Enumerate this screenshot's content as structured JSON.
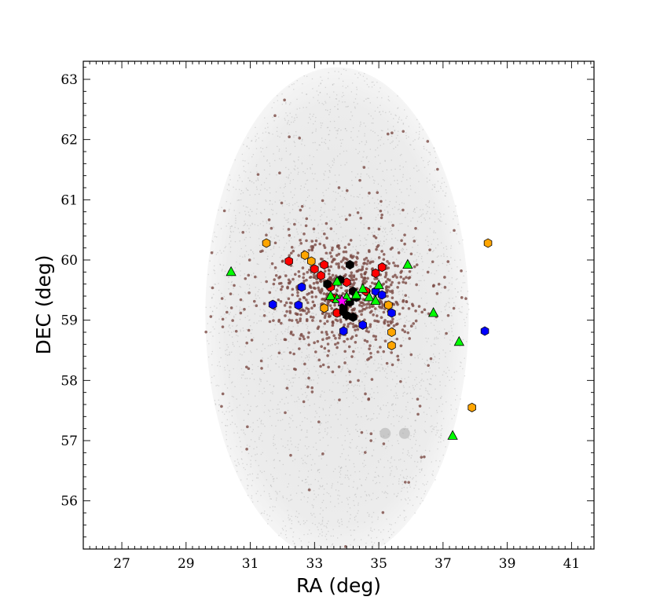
{
  "chart_data": {
    "type": "scatter",
    "title": "",
    "xlabel": "RA (deg)",
    "ylabel": "DEC (deg)",
    "xlim": [
      25.8,
      41.7
    ],
    "ylim": [
      55.2,
      63.3
    ],
    "x_ticks": [
      27,
      29,
      31,
      33,
      35,
      37,
      39,
      41
    ],
    "y_ticks": [
      56,
      57,
      58,
      59,
      60,
      61,
      62,
      63
    ],
    "grid": false,
    "legend": "none",
    "field": {
      "center": [
        33.7,
        59.1
      ],
      "radius_deg": 4.1,
      "color": "#c8c8c8"
    },
    "colors": {
      "background_stars": "#7a4a44",
      "red": "#ff0000",
      "black": "#000000",
      "blue": "#0000ff",
      "orange": "#ffa500",
      "green": "#00ff00",
      "magenta": "#ff00ff"
    },
    "series": [
      {
        "color": "#ff0000",
        "marker": "hexagon",
        "points": [
          [
            32.2,
            59.98
          ],
          [
            33.0,
            59.85
          ],
          [
            33.2,
            59.74
          ],
          [
            33.3,
            59.92
          ],
          [
            33.5,
            59.55
          ],
          [
            34.0,
            59.63
          ],
          [
            33.9,
            59.17
          ],
          [
            33.7,
            59.12
          ],
          [
            34.9,
            59.78
          ],
          [
            35.1,
            59.88
          ],
          [
            34.6,
            59.48
          ],
          [
            33.6,
            59.36
          ]
        ]
      },
      {
        "color": "#000000",
        "marker": "hexagon",
        "points": [
          [
            34.1,
            59.92
          ],
          [
            33.4,
            59.6
          ],
          [
            33.8,
            59.67
          ],
          [
            34.2,
            59.48
          ],
          [
            34.3,
            59.38
          ],
          [
            34.1,
            59.3
          ],
          [
            33.9,
            59.22
          ],
          [
            34.0,
            59.08
          ],
          [
            34.2,
            59.05
          ],
          [
            33.9,
            59.14
          ]
        ]
      },
      {
        "color": "#0000ff",
        "marker": "hexagon",
        "points": [
          [
            31.7,
            59.26
          ],
          [
            32.5,
            59.25
          ],
          [
            32.6,
            59.55
          ],
          [
            34.9,
            59.48
          ],
          [
            35.1,
            59.42
          ],
          [
            35.4,
            59.12
          ],
          [
            34.5,
            58.92
          ],
          [
            33.9,
            58.82
          ],
          [
            38.3,
            58.82
          ]
        ]
      },
      {
        "color": "#ffa500",
        "marker": "hexagon",
        "points": [
          [
            31.5,
            60.28
          ],
          [
            32.7,
            60.08
          ],
          [
            32.9,
            59.98
          ],
          [
            33.3,
            59.2
          ],
          [
            35.3,
            59.25
          ],
          [
            35.4,
            58.8
          ],
          [
            35.4,
            58.58
          ],
          [
            38.4,
            60.28
          ],
          [
            37.9,
            57.55
          ]
        ]
      },
      {
        "color": "#00ff00",
        "marker": "triangle",
        "points": [
          [
            30.4,
            59.8
          ],
          [
            35.9,
            59.92
          ],
          [
            33.7,
            59.64
          ],
          [
            34.5,
            59.52
          ],
          [
            34.3,
            59.42
          ],
          [
            34.7,
            59.38
          ],
          [
            34.9,
            59.32
          ],
          [
            33.5,
            59.4
          ],
          [
            33.7,
            59.35
          ],
          [
            34.0,
            59.38
          ],
          [
            36.7,
            59.12
          ],
          [
            37.5,
            58.64
          ],
          [
            37.3,
            57.08
          ],
          [
            35.0,
            59.58
          ]
        ]
      },
      {
        "color": "#ff00ff",
        "marker": "star",
        "points": [
          [
            33.85,
            59.32
          ]
        ]
      }
    ]
  },
  "axes": {
    "xlabel": "RA (deg)",
    "ylabel": "DEC (deg)"
  }
}
